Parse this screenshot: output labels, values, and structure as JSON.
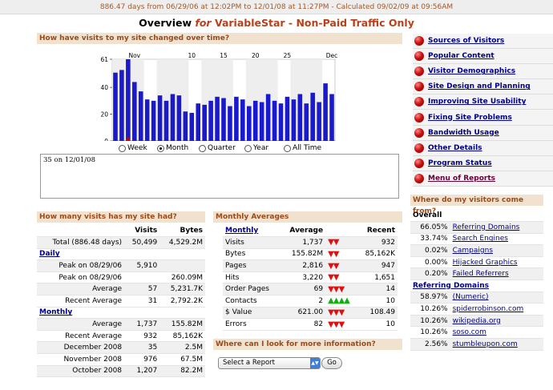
{
  "topbar": {
    "text": "886.47 days from 06/29/06 at 12:02PM to 12/01/08 at 11:27PM - Calculated 09/02/09 at 09:56AM"
  },
  "title": {
    "prefix": "Overview",
    "for": "for",
    "profile": "VariableStar - Non-Paid Traffic Only"
  },
  "chart_section": {
    "header": "How have visits to my site changed over time?"
  },
  "chart_data": {
    "type": "bar",
    "x_tick_labels": [
      "Nov",
      "10",
      "15",
      "20",
      "25",
      "Dec"
    ],
    "y_tick_labels": [
      "0",
      "20",
      "40",
      "61"
    ],
    "ylim": [
      0,
      61
    ],
    "values": [
      51,
      53,
      61,
      44,
      37,
      31,
      30,
      34,
      30,
      35,
      34,
      22,
      21,
      28,
      27,
      30,
      33,
      32,
      26,
      33,
      31,
      26,
      30,
      29,
      35,
      30,
      28,
      33,
      31,
      35,
      28,
      36,
      29,
      43,
      35
    ],
    "highlight_last": true,
    "bar_color": "#1a1acc",
    "highlight_color": "#cc0000"
  },
  "range_options": [
    "Week",
    "Month",
    "Quarter",
    "Year",
    "All Time"
  ],
  "range_selected": "Month",
  "info_text": "35 on 12/01/08",
  "right_menu": [
    {
      "label": "Sources of Visitors"
    },
    {
      "label": "Popular Content"
    },
    {
      "label": "Visitor Demographics"
    },
    {
      "label": "Site Design and Planning"
    },
    {
      "label": "Improving Site Usability"
    },
    {
      "label": "Fixing Site Problems"
    },
    {
      "label": "Bandwidth Usage"
    },
    {
      "label": "Other Details"
    },
    {
      "label": "Program Status"
    },
    {
      "label": "Menu of Reports"
    }
  ],
  "visits_section": {
    "header": "How many visits has my site had?",
    "col_visits": "Visits",
    "col_bytes": "Bytes",
    "total": {
      "label": "Total (886.48 days)",
      "visits": "50,499",
      "bytes": "4,529.2M"
    },
    "daily": {
      "label": "Daily",
      "rows": [
        {
          "label": "Peak on 08/29/06",
          "visits": "5,910",
          "bytes": ""
        },
        {
          "label": "Peak on 08/29/06",
          "visits": "",
          "bytes": "260.09M"
        },
        {
          "label": "Average",
          "visits": "57",
          "bytes": "5,231.7K"
        },
        {
          "label": "Recent Average",
          "visits": "31",
          "bytes": "2,792.2K"
        }
      ]
    },
    "monthly": {
      "label": "Monthly",
      "rows": [
        {
          "label": "Average",
          "visits": "1,737",
          "bytes": "155.82M"
        },
        {
          "label": "Recent Average",
          "visits": "932",
          "bytes": "85,162K"
        },
        {
          "label": "December 2008",
          "visits": "35",
          "bytes": "2.5M"
        },
        {
          "label": "November 2008",
          "visits": "976",
          "bytes": "67.5M"
        },
        {
          "label": "October 2008",
          "visits": "1,207",
          "bytes": "82.2M"
        }
      ]
    }
  },
  "averages_section": {
    "header": "Monthly Averages",
    "col_monthly": "Monthly",
    "col_average": "Average",
    "col_recent": "Recent",
    "rows": [
      {
        "label": "Visits",
        "average": "1,737",
        "trend": "down2",
        "recent": "932"
      },
      {
        "label": "Bytes",
        "average": "155.82M",
        "trend": "down2",
        "recent": "85,162K"
      },
      {
        "label": "Pages",
        "average": "2,816",
        "trend": "down2",
        "recent": "947"
      },
      {
        "label": "Hits",
        "average": "3,220",
        "trend": "down2",
        "recent": "1,651"
      },
      {
        "label": "Order Pages",
        "average": "69",
        "trend": "down3",
        "recent": "14"
      },
      {
        "label": "Contacts",
        "average": "2",
        "trend": "up4",
        "recent": "10"
      },
      {
        "label": "$ Value",
        "average": "621.00",
        "trend": "down3",
        "recent": "108.49"
      },
      {
        "label": "Errors",
        "average": "82",
        "trend": "down3",
        "recent": "10"
      }
    ]
  },
  "more_info_section": {
    "header": "Where can I look for more information?",
    "select_value": "Select a Report",
    "go_label": "Go"
  },
  "sources_section": {
    "header": "Where do my visitors come from?",
    "overall_label": "Overall",
    "overall_rows": [
      {
        "pct": "66.05%",
        "label": "Referring Domains"
      },
      {
        "pct": "33.74%",
        "label": "Search Engines"
      },
      {
        "pct": "0.02%",
        "label": "Campaigns"
      },
      {
        "pct": "0.00%",
        "label": "Hijacked Graphics"
      },
      {
        "pct": "0.20%",
        "label": "Failed Referrers"
      }
    ],
    "domains_label": "Referring Domains",
    "domain_rows": [
      {
        "pct": "58.97%",
        "label": "(Numeric)"
      },
      {
        "pct": "10.26%",
        "label": "spiderrobinson.com"
      },
      {
        "pct": "10.26%",
        "label": "wikipedia.org"
      },
      {
        "pct": "10.26%",
        "label": "soso.com"
      },
      {
        "pct": "2.56%",
        "label": "stumbleupon.com"
      }
    ]
  }
}
